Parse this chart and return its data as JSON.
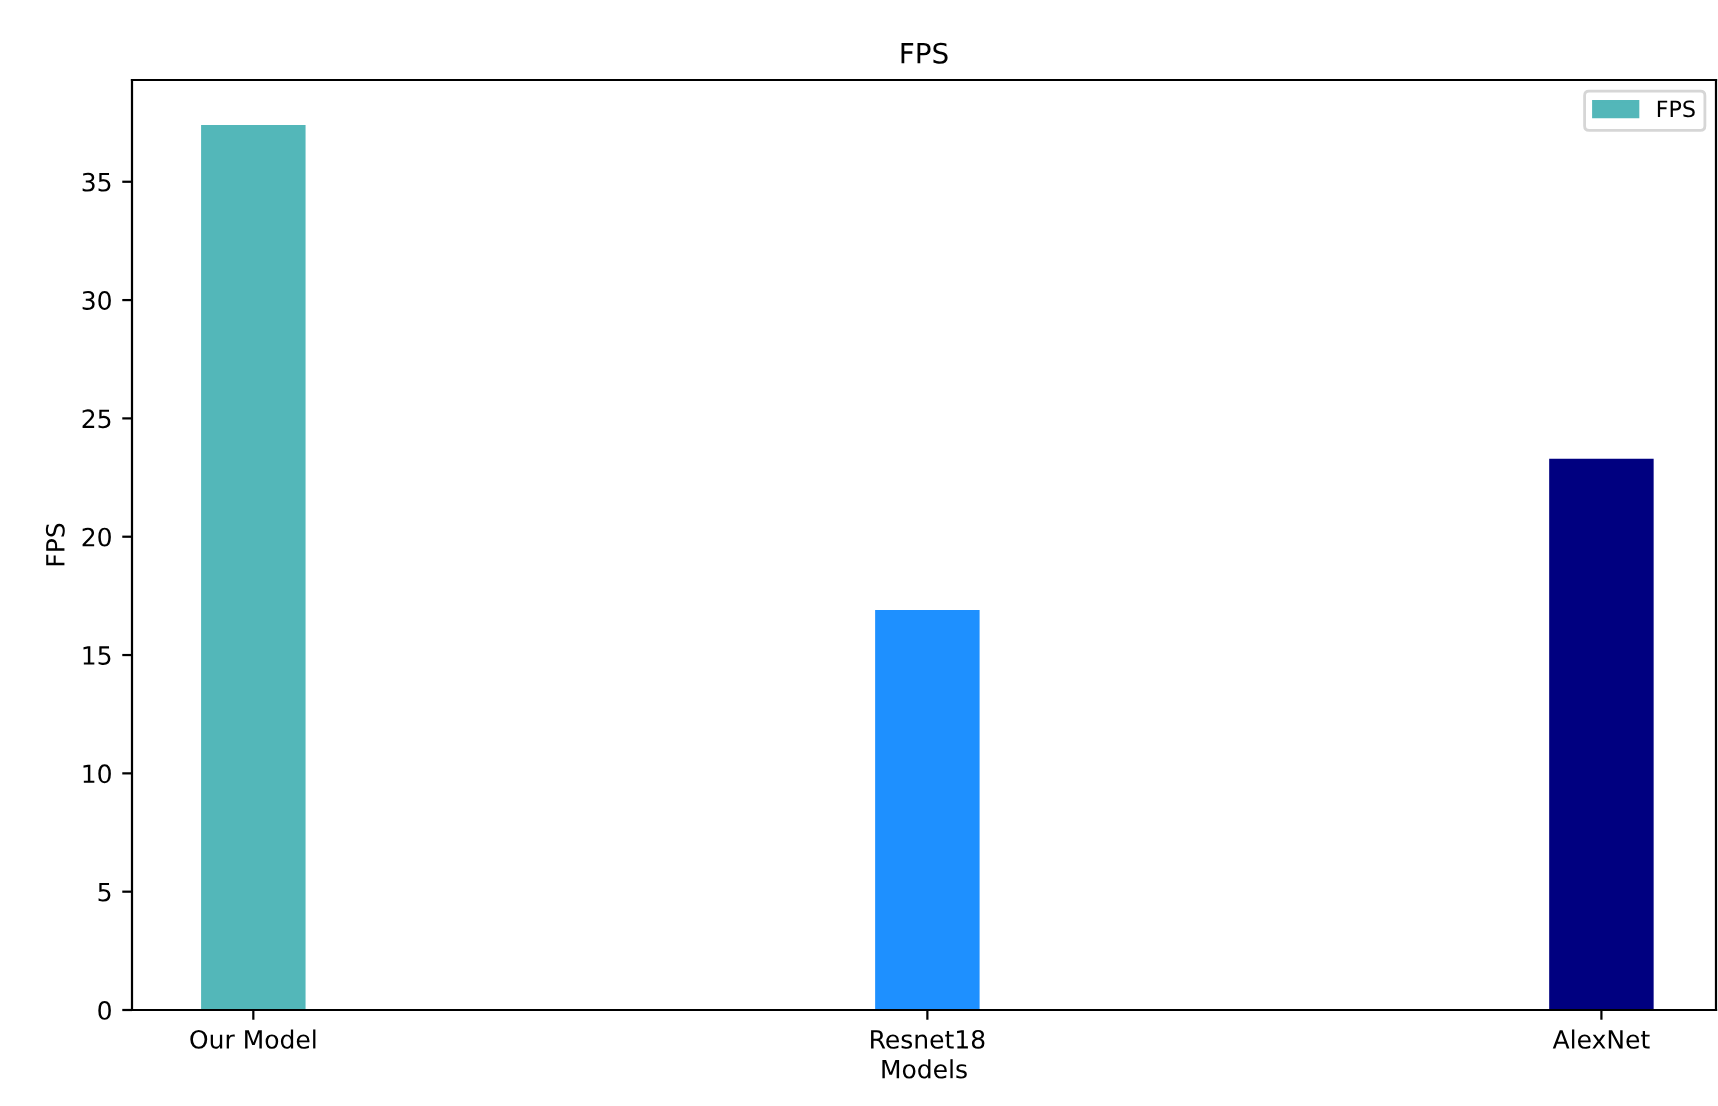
{
  "chart_data": {
    "type": "bar",
    "title": "FPS",
    "xlabel": "Models",
    "ylabel": "FPS",
    "categories": [
      "Our Model",
      "Resnet18",
      "AlexNet"
    ],
    "series": [
      {
        "name": "FPS",
        "colors": [
          "#53b7b9",
          "#1e90ff",
          "#000080"
        ],
        "values": [
          37.4,
          16.9,
          23.3
        ]
      }
    ],
    "ylim": [
      0,
      39.3
    ],
    "yticks": [
      0,
      5,
      10,
      15,
      20,
      25,
      30,
      35
    ],
    "legend": "top right",
    "grid": false
  }
}
